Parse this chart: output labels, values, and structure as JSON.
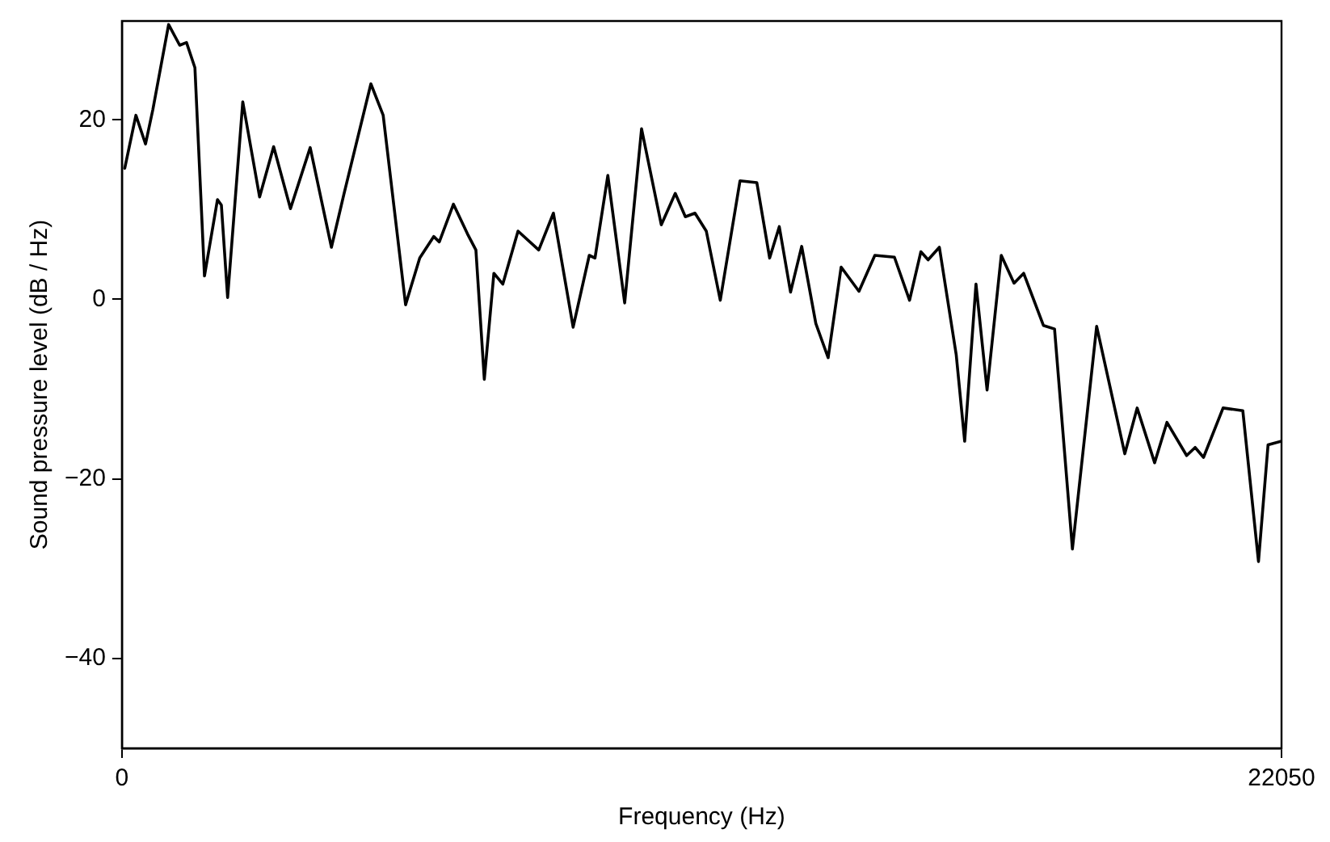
{
  "chart_data": {
    "type": "line",
    "xlabel": "Frequency (Hz)",
    "ylabel": "Sound pressure level (dB / Hz)",
    "xlim": [
      0,
      22050
    ],
    "xticks": [
      0,
      22050
    ],
    "ylim": [
      -50,
      31
    ],
    "yticks": [
      -40,
      -20,
      0,
      20
    ],
    "grid": false,
    "legend": false,
    "marker": "none",
    "line_style": "solid",
    "series": [
      {
        "color": "#000000",
        "x": [
          54,
          266,
          449,
          587,
          888,
          1099,
          1228,
          1388,
          1570,
          1817,
          1891,
          2010,
          2298,
          2618,
          2885,
          3205,
          3580,
          3984,
          4221,
          4734,
          4968,
          5394,
          5663,
          5929,
          6035,
          6304,
          6570,
          6731,
          6891,
          7073,
          7243,
          7532,
          7926,
          8205,
          8580,
          8887,
          8996,
          9240,
          9560,
          9881,
          10256,
          10522,
          10714,
          10897,
          11112,
          11378,
          11753,
          12073,
          12317,
          12500,
          12714,
          12926,
          13195,
          13429,
          13676,
          14015,
          14317,
          14689,
          14977,
          15192,
          15330,
          15544,
          15865,
          16025,
          16240,
          16451,
          16721,
          16964,
          17147,
          17522,
          17734,
          18074,
          18535,
          19070,
          19305,
          19637,
          19871,
          20246,
          20407,
          20567,
          20939,
          21314,
          21612,
          21794,
          22050
        ],
        "values": [
          14.6,
          20.5,
          17.3,
          21.1,
          30.6,
          28.3,
          28.6,
          25.8,
          2.6,
          11.1,
          10.5,
          0.2,
          22.0,
          11.4,
          17.0,
          10.1,
          16.9,
          5.8,
          11.7,
          24.0,
          20.5,
          -0.6,
          4.6,
          7.0,
          6.4,
          10.6,
          7.3,
          5.5,
          -8.9,
          2.9,
          1.7,
          7.6,
          5.5,
          9.6,
          -3.1,
          4.9,
          4.6,
          13.8,
          -0.4,
          19.0,
          8.3,
          11.8,
          9.2,
          9.6,
          7.6,
          -0.1,
          13.2,
          13.0,
          4.6,
          8.1,
          0.8,
          5.9,
          -2.7,
          -6.5,
          3.6,
          0.9,
          4.9,
          4.7,
          -0.1,
          5.3,
          4.4,
          5.8,
          -6.2,
          -15.8,
          1.7,
          -10.1,
          4.9,
          1.8,
          2.9,
          -2.9,
          -3.3,
          -27.8,
          -3.0,
          -17.2,
          -12.1,
          -18.2,
          -13.7,
          -17.4,
          -16.5,
          -17.6,
          -12.1,
          -12.4,
          -29.2,
          -16.2,
          -15.8
        ]
      }
    ]
  }
}
